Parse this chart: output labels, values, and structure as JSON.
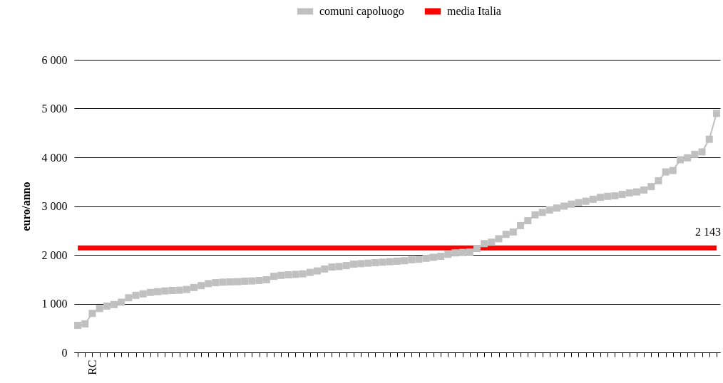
{
  "chart_data": {
    "type": "line",
    "ylabel": "euro/anno",
    "categories": [
      null,
      null,
      "RC",
      null,
      null,
      null,
      null,
      null,
      null,
      null,
      null,
      null,
      null,
      null,
      null,
      null,
      null,
      null,
      null,
      null,
      null,
      null,
      null,
      null,
      null,
      null,
      null,
      null,
      null,
      null,
      null,
      null,
      null,
      null,
      null,
      null,
      null,
      null,
      null,
      null,
      null,
      null,
      null,
      null,
      null,
      null,
      null,
      null,
      null,
      null,
      null,
      null,
      null,
      null,
      null,
      null,
      null,
      null,
      null,
      null,
      null,
      null,
      null,
      null,
      null,
      null,
      null,
      null,
      null,
      null,
      null,
      null,
      null,
      null,
      null,
      null,
      null,
      null,
      null,
      null,
      null,
      null,
      null,
      null,
      null,
      null,
      null,
      null,
      null
    ],
    "series": [
      {
        "name": "comuni capoluogo",
        "color": "#c0c0c0",
        "values": [
          555,
          585,
          800,
          900,
          950,
          980,
          1030,
          1120,
          1170,
          1200,
          1230,
          1245,
          1260,
          1270,
          1275,
          1290,
          1330,
          1370,
          1410,
          1430,
          1440,
          1445,
          1450,
          1460,
          1465,
          1475,
          1490,
          1560,
          1580,
          1590,
          1600,
          1610,
          1640,
          1670,
          1710,
          1750,
          1760,
          1780,
          1810,
          1820,
          1830,
          1840,
          1850,
          1860,
          1870,
          1880,
          1900,
          1910,
          1930,
          1950,
          1970,
          2010,
          2040,
          2050,
          2060,
          2130,
          2230,
          2260,
          2330,
          2420,
          2470,
          2600,
          2700,
          2820,
          2870,
          2920,
          2960,
          3000,
          3040,
          3070,
          3100,
          3140,
          3180,
          3200,
          3210,
          3240,
          3270,
          3290,
          3330,
          3400,
          3520,
          3700,
          3730,
          3950,
          3990,
          4060,
          4110,
          4370,
          4900
        ]
      },
      {
        "name": "media Italia",
        "color": "#ff0000",
        "marker": "none",
        "values": [
          2143,
          2143,
          2143,
          2143,
          2143,
          2143,
          2143,
          2143,
          2143,
          2143,
          2143,
          2143,
          2143,
          2143,
          2143,
          2143,
          2143,
          2143,
          2143,
          2143,
          2143,
          2143,
          2143,
          2143,
          2143,
          2143,
          2143,
          2143,
          2143,
          2143,
          2143,
          2143,
          2143,
          2143,
          2143,
          2143,
          2143,
          2143,
          2143,
          2143,
          2143,
          2143,
          2143,
          2143,
          2143,
          2143,
          2143,
          2143,
          2143,
          2143,
          2143,
          2143,
          2143,
          2143,
          2143,
          2143,
          2143,
          2143,
          2143,
          2143,
          2143,
          2143,
          2143,
          2143,
          2143,
          2143,
          2143,
          2143,
          2143,
          2143,
          2143,
          2143,
          2143,
          2143,
          2143,
          2143,
          2143,
          2143,
          2143,
          2143,
          2143,
          2143,
          2143,
          2143,
          2143,
          2143,
          2143,
          2143,
          2143
        ],
        "value_labels": [
          null,
          null,
          null,
          null,
          null,
          null,
          null,
          null,
          null,
          null,
          null,
          null,
          null,
          null,
          null,
          null,
          null,
          null,
          null,
          null,
          null,
          null,
          null,
          null,
          null,
          null,
          null,
          null,
          null,
          null,
          null,
          null,
          null,
          null,
          null,
          null,
          null,
          null,
          null,
          null,
          null,
          null,
          null,
          null,
          null,
          null,
          null,
          null,
          null,
          null,
          null,
          null,
          null,
          null,
          null,
          null,
          null,
          null,
          null,
          null,
          null,
          null,
          null,
          null,
          null,
          null,
          null,
          null,
          null,
          null,
          null,
          null,
          null,
          null,
          null,
          null,
          null,
          null,
          null,
          null,
          null,
          null,
          null,
          null,
          null,
          null,
          null,
          null,
          "2 143"
        ]
      }
    ],
    "ylim": [
      0,
      6000
    ],
    "yticks": [
      {
        "value": 0,
        "label": "0"
      },
      {
        "value": 1000,
        "label": "1 000"
      },
      {
        "value": 2000,
        "label": "2 000"
      },
      {
        "value": 3000,
        "label": "3 000"
      },
      {
        "value": 4000,
        "label": "4 000"
      },
      {
        "value": 5000,
        "label": "5 000"
      },
      {
        "value": 6000,
        "label": "6 000"
      }
    ],
    "grid": "y",
    "legend": "top",
    "marker": "square"
  }
}
